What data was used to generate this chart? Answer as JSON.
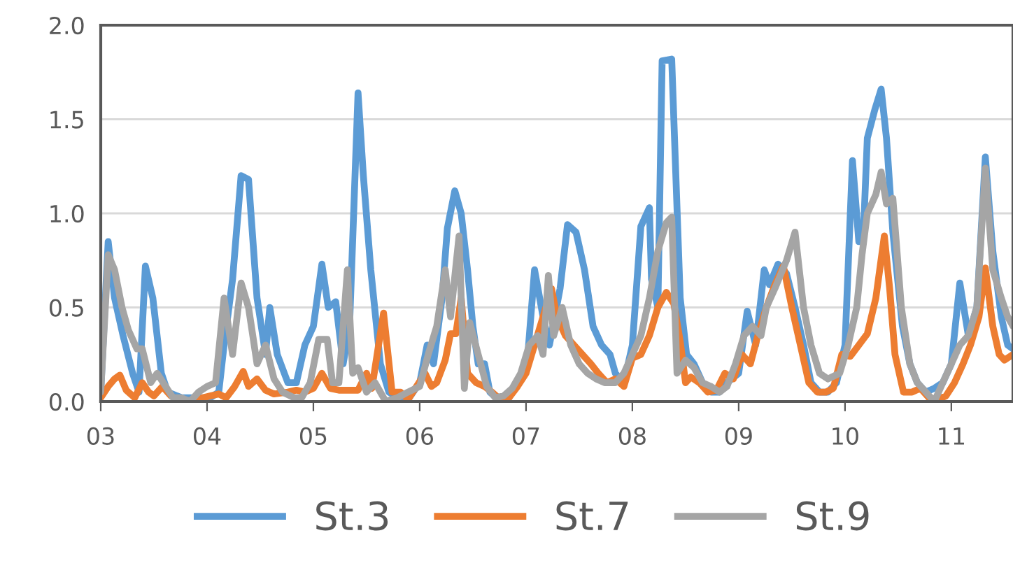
{
  "chart_data": {
    "type": "line",
    "xlim": [
      3,
      11.58
    ],
    "xticks": [
      {
        "value": 3,
        "label": "03"
      },
      {
        "value": 4,
        "label": "04"
      },
      {
        "value": 5,
        "label": "05"
      },
      {
        "value": 6,
        "label": "06"
      },
      {
        "value": 7,
        "label": "07"
      },
      {
        "value": 8,
        "label": "08"
      },
      {
        "value": 9,
        "label": "09"
      },
      {
        "value": 10,
        "label": "10"
      },
      {
        "value": 11,
        "label": "11"
      }
    ],
    "ylim": [
      0,
      2.0
    ],
    "yticks": [
      {
        "value": 0,
        "label": "0.0"
      },
      {
        "value": 0.5,
        "label": "0.5"
      },
      {
        "value": 1.0,
        "label": "1.0"
      },
      {
        "value": 1.5,
        "label": "1.5"
      },
      {
        "value": 2.0,
        "label": "2.0"
      }
    ],
    "grid": "y",
    "legend": "bottom",
    "marker": "none",
    "line_style": "solid",
    "series": [
      {
        "name": "St.3",
        "color": "#5b9bd5",
        "x": [
          3.0,
          3.07,
          3.13,
          3.21,
          3.3,
          3.36,
          3.42,
          3.49,
          3.57,
          3.63,
          3.76,
          3.89,
          4.03,
          4.11,
          4.16,
          4.24,
          4.32,
          4.39,
          4.47,
          4.55,
          4.59,
          4.66,
          4.76,
          4.84,
          4.92,
          5.0,
          5.08,
          5.14,
          5.21,
          5.28,
          5.34,
          5.42,
          5.47,
          5.54,
          5.63,
          5.71,
          5.8,
          5.89,
          6.0,
          6.07,
          6.13,
          6.21,
          6.26,
          6.33,
          6.39,
          6.45,
          6.5,
          6.55,
          6.61,
          6.66,
          6.76,
          6.84,
          6.92,
          7.01,
          7.08,
          7.16,
          7.22,
          7.32,
          7.39,
          7.47,
          7.55,
          7.63,
          7.71,
          7.79,
          7.84,
          7.92,
          8.0,
          8.08,
          8.16,
          8.18,
          8.24,
          8.28,
          8.37,
          8.45,
          8.51,
          8.58,
          8.66,
          8.74,
          8.82,
          8.89,
          9.0,
          9.08,
          9.16,
          9.24,
          9.29,
          9.37,
          9.45,
          9.53,
          9.61,
          9.68,
          9.76,
          9.84,
          9.92,
          10.0,
          10.07,
          10.13,
          10.17,
          10.21,
          10.28,
          10.34,
          10.39,
          10.45,
          10.54,
          10.61,
          10.68,
          10.76,
          10.84,
          10.92,
          11.0,
          11.08,
          11.16,
          11.24,
          11.32,
          11.39,
          11.47,
          11.53,
          11.58
        ],
        "values": [
          0.05,
          0.85,
          0.55,
          0.35,
          0.15,
          0.05,
          0.72,
          0.55,
          0.15,
          0.05,
          0.02,
          0.02,
          0.02,
          0.05,
          0.3,
          0.65,
          1.2,
          1.18,
          0.55,
          0.25,
          0.5,
          0.25,
          0.1,
          0.1,
          0.3,
          0.4,
          0.73,
          0.5,
          0.53,
          0.2,
          0.4,
          1.64,
          1.2,
          0.7,
          0.2,
          0.05,
          0.02,
          0.01,
          0.1,
          0.3,
          0.2,
          0.55,
          0.92,
          1.12,
          1.0,
          0.7,
          0.4,
          0.2,
          0.2,
          0.05,
          0.0,
          0.02,
          0.1,
          0.2,
          0.7,
          0.45,
          0.3,
          0.6,
          0.94,
          0.9,
          0.7,
          0.4,
          0.3,
          0.25,
          0.15,
          0.1,
          0.3,
          0.93,
          1.03,
          0.65,
          0.5,
          1.81,
          1.82,
          0.55,
          0.25,
          0.2,
          0.1,
          0.05,
          0.05,
          0.1,
          0.15,
          0.48,
          0.3,
          0.7,
          0.62,
          0.73,
          0.68,
          0.5,
          0.3,
          0.1,
          0.05,
          0.05,
          0.1,
          0.3,
          1.28,
          0.85,
          0.85,
          1.4,
          1.55,
          1.66,
          1.4,
          0.9,
          0.4,
          0.2,
          0.1,
          0.05,
          0.07,
          0.1,
          0.2,
          0.63,
          0.35,
          0.5,
          1.3,
          0.8,
          0.45,
          0.3,
          0.28
        ]
      },
      {
        "name": "St.7",
        "color": "#ed7d31",
        "x": [
          3.0,
          3.07,
          3.13,
          3.18,
          3.24,
          3.32,
          3.39,
          3.45,
          3.5,
          3.58,
          3.66,
          3.76,
          3.89,
          4.03,
          4.11,
          4.18,
          4.26,
          4.34,
          4.39,
          4.47,
          4.55,
          4.63,
          4.76,
          4.84,
          4.92,
          5.0,
          5.08,
          5.16,
          5.24,
          5.34,
          5.42,
          5.5,
          5.55,
          5.66,
          5.74,
          5.82,
          5.89,
          5.97,
          6.05,
          6.11,
          6.16,
          6.24,
          6.29,
          6.34,
          6.39,
          6.45,
          6.53,
          6.61,
          6.68,
          6.76,
          6.84,
          6.92,
          7.0,
          7.08,
          7.16,
          7.24,
          7.29,
          7.37,
          7.45,
          7.53,
          7.61,
          7.68,
          7.76,
          7.84,
          7.92,
          8.0,
          8.08,
          8.16,
          8.24,
          8.32,
          8.39,
          8.45,
          8.5,
          8.55,
          8.63,
          8.71,
          8.79,
          8.87,
          8.95,
          9.03,
          9.11,
          9.18,
          9.26,
          9.34,
          9.42,
          9.5,
          9.58,
          9.66,
          9.74,
          9.82,
          9.89,
          9.97,
          10.05,
          10.13,
          10.21,
          10.29,
          10.37,
          10.42,
          10.47,
          10.55,
          10.63,
          10.71,
          10.79,
          10.87,
          10.95,
          11.03,
          11.11,
          11.18,
          11.26,
          11.32,
          11.39,
          11.45,
          11.5,
          11.58
        ],
        "values": [
          0.02,
          0.08,
          0.12,
          0.14,
          0.06,
          0.02,
          0.1,
          0.05,
          0.03,
          0.08,
          0.03,
          0.0,
          0.01,
          0.03,
          0.04,
          0.02,
          0.08,
          0.16,
          0.08,
          0.12,
          0.06,
          0.04,
          0.05,
          0.06,
          0.05,
          0.07,
          0.15,
          0.07,
          0.06,
          0.06,
          0.06,
          0.15,
          0.07,
          0.47,
          0.05,
          0.05,
          0.01,
          0.08,
          0.15,
          0.08,
          0.1,
          0.22,
          0.36,
          0.36,
          0.55,
          0.15,
          0.1,
          0.08,
          0.05,
          0.01,
          0.02,
          0.08,
          0.15,
          0.3,
          0.45,
          0.6,
          0.45,
          0.35,
          0.3,
          0.25,
          0.2,
          0.15,
          0.1,
          0.12,
          0.08,
          0.23,
          0.25,
          0.35,
          0.5,
          0.58,
          0.52,
          0.32,
          0.1,
          0.13,
          0.1,
          0.05,
          0.06,
          0.15,
          0.12,
          0.25,
          0.2,
          0.35,
          0.5,
          0.62,
          0.72,
          0.5,
          0.3,
          0.1,
          0.05,
          0.05,
          0.07,
          0.25,
          0.24,
          0.3,
          0.36,
          0.55,
          0.88,
          0.6,
          0.25,
          0.05,
          0.05,
          0.07,
          0.02,
          0.01,
          0.03,
          0.1,
          0.2,
          0.3,
          0.45,
          0.71,
          0.4,
          0.25,
          0.22,
          0.25
        ]
      },
      {
        "name": "St.9",
        "color": "#a5a5a5",
        "x": [
          3.0,
          3.07,
          3.13,
          3.2,
          3.26,
          3.34,
          3.39,
          3.47,
          3.53,
          3.61,
          3.68,
          3.76,
          3.84,
          3.92,
          4.0,
          4.08,
          4.16,
          4.24,
          4.32,
          4.39,
          4.47,
          4.55,
          4.63,
          4.71,
          4.82,
          4.89,
          4.97,
          5.05,
          5.13,
          5.18,
          5.24,
          5.32,
          5.37,
          5.42,
          5.5,
          5.58,
          5.68,
          5.79,
          5.89,
          6.0,
          6.08,
          6.16,
          6.24,
          6.29,
          6.37,
          6.42,
          6.47,
          6.55,
          6.63,
          6.71,
          6.79,
          6.87,
          6.95,
          7.03,
          7.11,
          7.16,
          7.21,
          7.26,
          7.34,
          7.42,
          7.5,
          7.58,
          7.66,
          7.74,
          7.84,
          7.92,
          8.0,
          8.08,
          8.16,
          8.24,
          8.32,
          8.37,
          8.42,
          8.5,
          8.58,
          8.66,
          8.74,
          8.82,
          8.89,
          8.97,
          9.05,
          9.13,
          9.21,
          9.26,
          9.34,
          9.45,
          9.53,
          9.61,
          9.68,
          9.76,
          9.84,
          9.95,
          10.03,
          10.11,
          10.16,
          10.21,
          10.29,
          10.34,
          10.39,
          10.45,
          10.53,
          10.61,
          10.68,
          10.76,
          10.84,
          10.92,
          11.0,
          11.08,
          11.16,
          11.24,
          11.32,
          11.39,
          11.47,
          11.53,
          11.58
        ],
        "values": [
          0.05,
          0.78,
          0.7,
          0.5,
          0.38,
          0.28,
          0.28,
          0.1,
          0.15,
          0.08,
          0.02,
          0.02,
          0.0,
          0.05,
          0.08,
          0.1,
          0.55,
          0.25,
          0.63,
          0.5,
          0.2,
          0.3,
          0.12,
          0.05,
          0.02,
          0.02,
          0.1,
          0.33,
          0.33,
          0.1,
          0.1,
          0.7,
          0.15,
          0.18,
          0.05,
          0.1,
          0.0,
          0.02,
          0.05,
          0.08,
          0.25,
          0.4,
          0.7,
          0.45,
          0.88,
          0.07,
          0.42,
          0.25,
          0.08,
          0.02,
          0.03,
          0.07,
          0.15,
          0.3,
          0.35,
          0.25,
          0.67,
          0.35,
          0.5,
          0.3,
          0.2,
          0.15,
          0.12,
          0.1,
          0.1,
          0.15,
          0.25,
          0.35,
          0.55,
          0.8,
          0.95,
          0.98,
          0.15,
          0.22,
          0.18,
          0.1,
          0.08,
          0.05,
          0.08,
          0.2,
          0.35,
          0.4,
          0.35,
          0.5,
          0.6,
          0.75,
          0.9,
          0.5,
          0.3,
          0.15,
          0.12,
          0.15,
          0.3,
          0.5,
          0.78,
          1.0,
          1.1,
          1.22,
          1.05,
          1.08,
          0.5,
          0.2,
          0.1,
          0.05,
          0.0,
          0.1,
          0.2,
          0.3,
          0.35,
          0.5,
          1.24,
          0.7,
          0.55,
          0.45,
          0.4
        ]
      }
    ]
  }
}
